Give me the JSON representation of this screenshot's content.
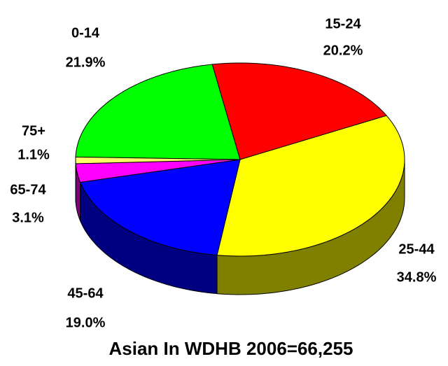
{
  "chart_data": {
    "type": "pie",
    "title": "Asian In WDHB 2006=66,255",
    "categories": [
      "0-14",
      "15-24",
      "25-44",
      "45-64",
      "65-74",
      "75+"
    ],
    "values": [
      21.9,
      20.2,
      34.8,
      19.0,
      3.1,
      1.1
    ],
    "value_labels": [
      "21.9%",
      "20.2%",
      "34.8%",
      "19.0%",
      "3.1%",
      "1.1%"
    ],
    "colors": [
      "#00ff00",
      "#ff0000",
      "#ffff00",
      "#0000ff",
      "#ff00ff",
      "#ffff66"
    ]
  }
}
